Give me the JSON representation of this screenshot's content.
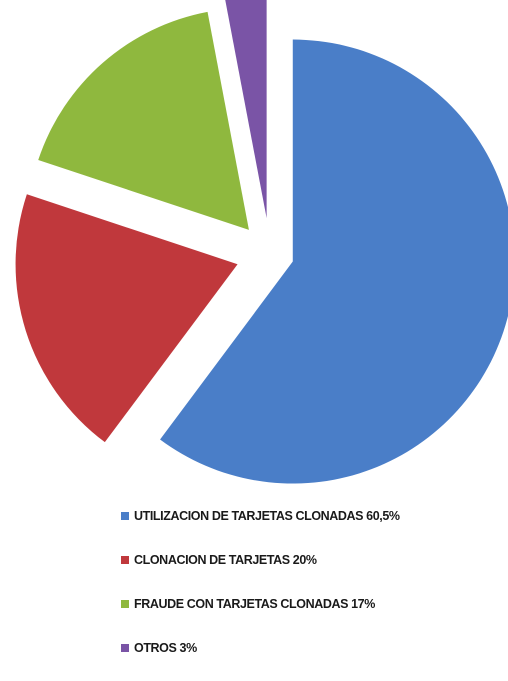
{
  "chart_data": {
    "type": "pie",
    "exploded": true,
    "legend_position": "bottom",
    "series": [
      {
        "label": "UTILIZACION DE TARJETAS CLONADAS 60,5%",
        "value": 60.5,
        "color": "#4a7ec8"
      },
      {
        "label": "CLONACION DE TARJETAS 20%",
        "value": 20,
        "color": "#c0383c"
      },
      {
        "label": "FRAUDE CON TARJETAS CLONADAS 17%",
        "value": 17,
        "color": "#8fb83e"
      },
      {
        "label": "OTROS 3%",
        "value": 3,
        "color": "#7a54a6"
      }
    ]
  }
}
